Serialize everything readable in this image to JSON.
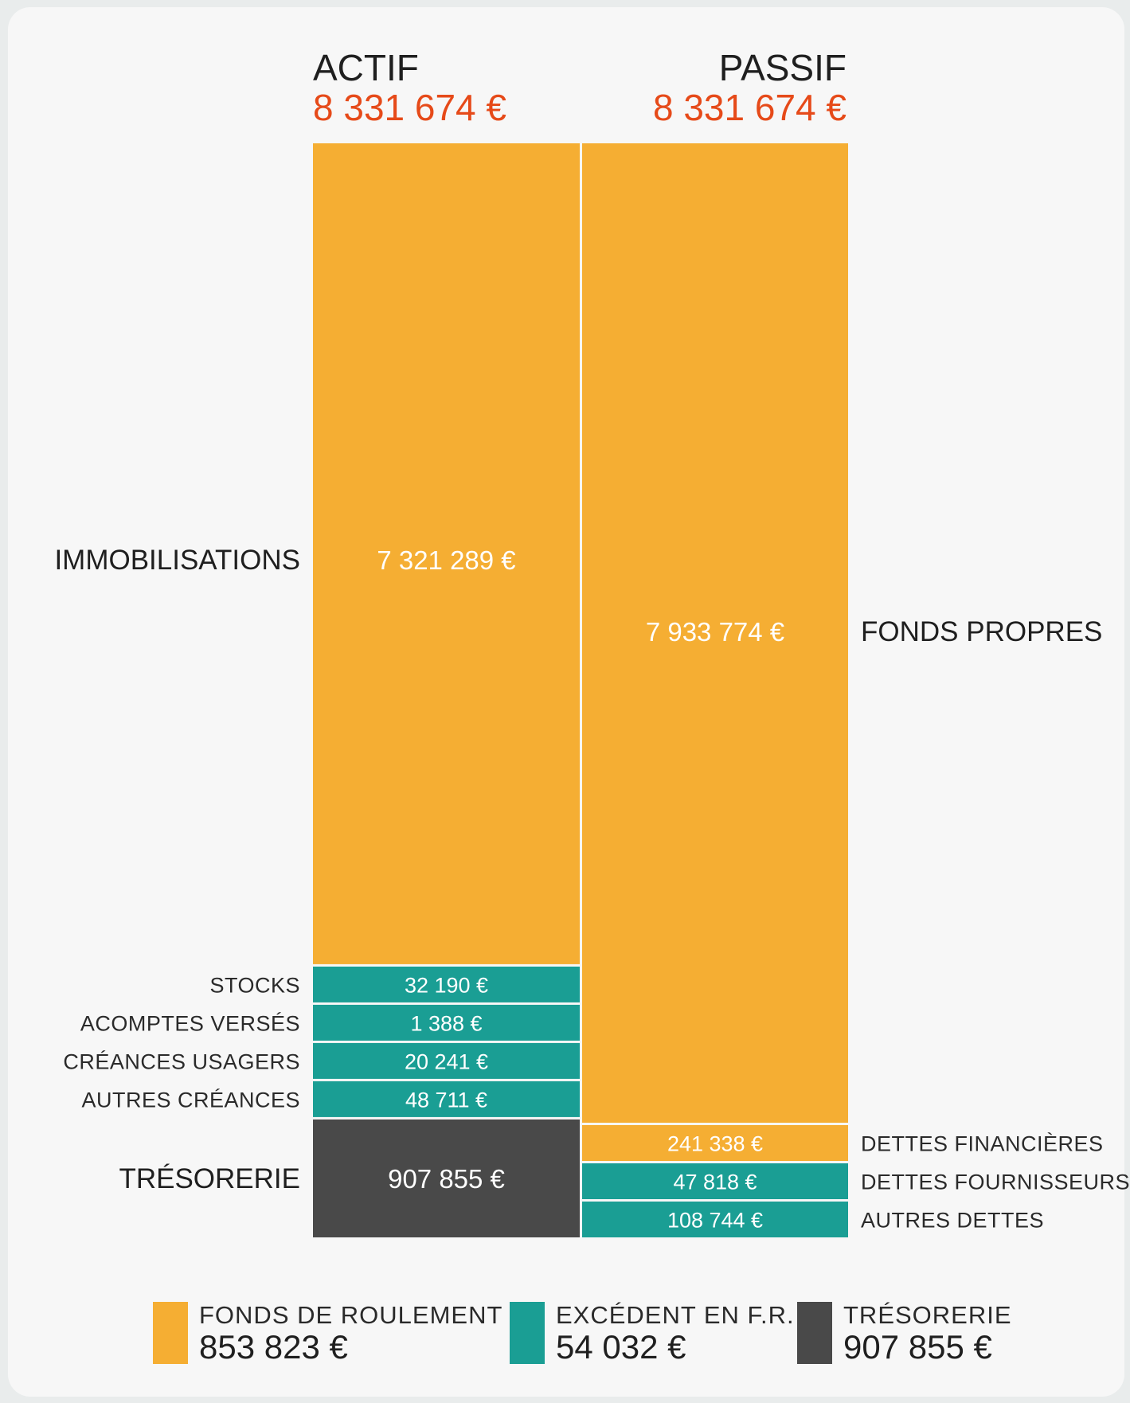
{
  "chart_data": {
    "type": "bar",
    "subtype": "stacked-balance-sheet",
    "unit": "€",
    "colors": {
      "fonds_de_roulement": "#f5ae33",
      "excedent_fr": "#1a9e94",
      "tresorerie": "#494949",
      "totals": "#e64a19"
    },
    "actif": {
      "title": "ACTIF",
      "total": 8331674,
      "total_label": "8 331 674 €",
      "segments": [
        {
          "name": "IMMOBILISATIONS",
          "value": 7321289,
          "label": "7 321 289 €",
          "group": "fonds_de_roulement"
        },
        {
          "name": "STOCKS",
          "value": 32190,
          "label": "32 190 €",
          "group": "excedent_fr"
        },
        {
          "name": "ACOMPTES VERSÉS",
          "value": 1388,
          "label": "1 388 €",
          "group": "excedent_fr"
        },
        {
          "name": "CRÉANCES USAGERS",
          "value": 20241,
          "label": "20 241 €",
          "group": "excedent_fr"
        },
        {
          "name": "AUTRES CRÉANCES",
          "value": 48711,
          "label": "48 711 €",
          "group": "excedent_fr"
        },
        {
          "name": "TRÉSORERIE",
          "value": 907855,
          "label": "907 855 €",
          "group": "tresorerie"
        }
      ]
    },
    "passif": {
      "title": "PASSIF",
      "total": 8331674,
      "total_label": "8 331 674 €",
      "segments": [
        {
          "name": "FONDS PROPRES",
          "value": 7933774,
          "label": "7 933 774 €",
          "group": "fonds_de_roulement"
        },
        {
          "name": "DETTES FINANCIÈRES",
          "value": 241338,
          "label": "241 338 €",
          "group": "fonds_de_roulement"
        },
        {
          "name": "DETTES FOURNISSEURS",
          "value": 47818,
          "label": "47 818 €",
          "group": "excedent_fr"
        },
        {
          "name": "AUTRES DETTES",
          "value": 108744,
          "label": "108 744 €",
          "group": "excedent_fr"
        }
      ]
    },
    "legend": [
      {
        "label": "FONDS DE ROULEMENT",
        "value": 853823,
        "value_label": "853 823 €",
        "group": "fonds_de_roulement"
      },
      {
        "label": "EXCÉDENT EN F.R.",
        "value": 54032,
        "value_label": "54 032 €",
        "group": "excedent_fr"
      },
      {
        "label": "TRÉSORERIE",
        "value": 907855,
        "value_label": "907 855 €",
        "group": "tresorerie"
      }
    ]
  }
}
